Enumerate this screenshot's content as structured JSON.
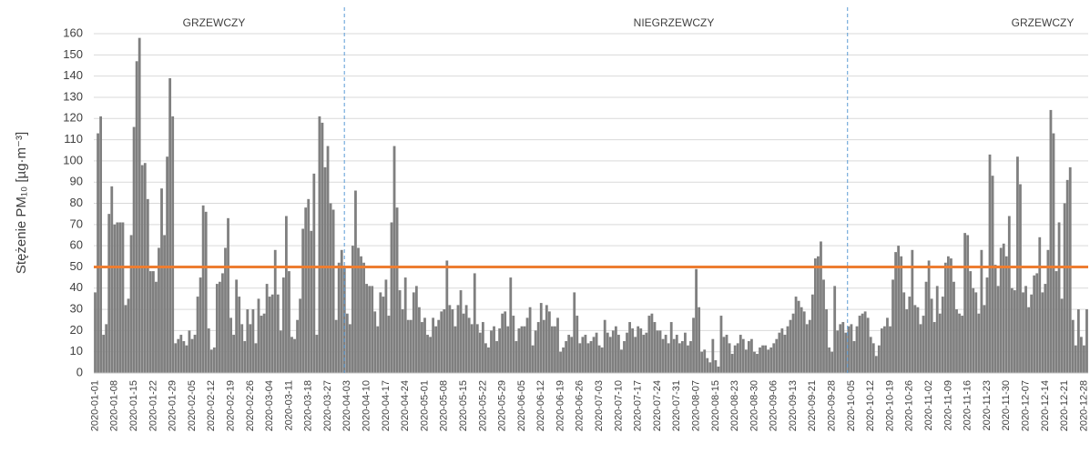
{
  "chart_data": {
    "type": "bar",
    "y_label": "Stężenie PM₁₀ [µg·m⁻³]",
    "annotations": [
      "GRZEWCZY",
      "NIEGRZEWCZY",
      "GRZEWCZY"
    ],
    "color": "#7f7f7f",
    "reference_line": {
      "value": 50,
      "color": "#ed7d31"
    },
    "ylim": [
      0,
      160
    ],
    "yticks": [
      0,
      10,
      20,
      30,
      40,
      50,
      60,
      70,
      80,
      90,
      100,
      110,
      120,
      130,
      140,
      150,
      160
    ],
    "grid": true,
    "categories": [
      "2020-01-01",
      null,
      null,
      null,
      null,
      null,
      null,
      "2020-01-08",
      null,
      null,
      null,
      null,
      null,
      null,
      "2020-01-15",
      null,
      null,
      null,
      null,
      null,
      null,
      "2020-01-22",
      null,
      null,
      null,
      null,
      null,
      null,
      "2020-01-29",
      null,
      null,
      null,
      null,
      null,
      null,
      "2020-02-05",
      null,
      null,
      null,
      null,
      null,
      null,
      "2020-02-12",
      null,
      null,
      null,
      null,
      null,
      null,
      "2020-02-19",
      null,
      null,
      null,
      null,
      null,
      null,
      "2020-02-26",
      null,
      null,
      null,
      null,
      null,
      null,
      "2020-03-04",
      null,
      null,
      null,
      null,
      null,
      null,
      "2020-03-11",
      null,
      null,
      null,
      null,
      null,
      null,
      "2020-03-18",
      null,
      null,
      null,
      null,
      null,
      null,
      "2020-03-27",
      null,
      null,
      null,
      null,
      null,
      null,
      "2020-04-03",
      null,
      null,
      null,
      null,
      null,
      null,
      "2020-04-10",
      null,
      null,
      null,
      null,
      null,
      null,
      "2020-04-17",
      null,
      null,
      null,
      null,
      null,
      null,
      "2020-04-24",
      null,
      null,
      null,
      null,
      null,
      null,
      "2020-05-01",
      null,
      null,
      null,
      null,
      null,
      null,
      "2020-05-08",
      null,
      null,
      null,
      null,
      null,
      null,
      "2020-05-15",
      null,
      null,
      null,
      null,
      null,
      null,
      "2020-05-22",
      null,
      null,
      null,
      null,
      null,
      null,
      "2020-05-29",
      null,
      null,
      null,
      null,
      null,
      null,
      "2020-06-05",
      null,
      null,
      null,
      null,
      null,
      null,
      "2020-06-12",
      null,
      null,
      null,
      null,
      null,
      null,
      "2020-06-19",
      null,
      null,
      null,
      null,
      null,
      null,
      "2020-06-26",
      null,
      null,
      null,
      null,
      null,
      null,
      "2020-07-03",
      null,
      null,
      null,
      null,
      null,
      null,
      "2020-07-10",
      null,
      null,
      null,
      null,
      null,
      null,
      "2020-07-17",
      null,
      null,
      null,
      null,
      null,
      null,
      "2020-07-24",
      null,
      null,
      null,
      null,
      null,
      null,
      "2020-07-31",
      null,
      null,
      null,
      null,
      null,
      null,
      "2020-08-07",
      null,
      null,
      null,
      null,
      null,
      null,
      "2020-08-15",
      null,
      null,
      null,
      null,
      null,
      null,
      "2020-08-23",
      null,
      null,
      null,
      null,
      null,
      null,
      "2020-08-30",
      null,
      null,
      null,
      null,
      null,
      null,
      "2020-09-06",
      null,
      null,
      null,
      null,
      null,
      null,
      "2020-09-13",
      null,
      null,
      null,
      null,
      null,
      null,
      "2020-09-21",
      null,
      null,
      null,
      null,
      null,
      null,
      "2020-09-28",
      null,
      null,
      null,
      null,
      null,
      null,
      "2020-10-05",
      null,
      null,
      null,
      null,
      null,
      null,
      "2020-10-12",
      null,
      null,
      null,
      null,
      null,
      null,
      "2020-10-19",
      null,
      null,
      null,
      null,
      null,
      null,
      "2020-10-26",
      null,
      null,
      null,
      null,
      null,
      null,
      "2020-11-02",
      null,
      null,
      null,
      null,
      null,
      null,
      "2020-11-09",
      null,
      null,
      null,
      null,
      null,
      null,
      "2020-11-16",
      null,
      null,
      null,
      null,
      null,
      null,
      "2020-11-23",
      null,
      null,
      null,
      null,
      null,
      null,
      "2020-11-30",
      null,
      null,
      null,
      null,
      null,
      null,
      "2020-12-07",
      null,
      null,
      null,
      null,
      null,
      null,
      "2020-12-14",
      null,
      null,
      null,
      null,
      null,
      null,
      "2020-12-21",
      null,
      null,
      null,
      null,
      null,
      null,
      "2020-12-28",
      null
    ],
    "values": [
      38,
      113,
      121,
      18,
      23,
      75,
      88,
      70,
      71,
      71,
      71,
      32,
      35,
      65,
      116,
      147,
      158,
      98,
      99,
      82,
      48,
      48,
      43,
      59,
      87,
      65,
      102,
      139,
      121,
      14,
      16,
      18,
      15,
      13,
      20,
      16,
      18,
      36,
      45,
      79,
      76,
      21,
      11,
      12,
      42,
      43,
      47,
      59,
      73,
      26,
      18,
      44,
      36,
      23,
      15,
      30,
      23,
      30,
      14,
      35,
      27,
      28,
      42,
      36,
      37,
      58,
      37,
      20,
      45,
      74,
      48,
      17,
      16,
      25,
      35,
      68,
      78,
      82,
      67,
      94,
      18,
      121,
      118,
      97,
      107,
      80,
      77,
      25,
      52,
      58,
      50,
      28,
      23,
      60,
      86,
      59,
      55,
      52,
      42,
      41,
      41,
      29,
      22,
      38,
      36,
      44,
      27,
      71,
      107,
      78,
      39,
      30,
      45,
      25,
      25,
      38,
      41,
      31,
      24,
      26,
      18,
      17,
      26,
      22,
      25,
      29,
      30,
      53,
      32,
      30,
      22,
      32,
      39,
      28,
      32,
      26,
      23,
      47,
      23,
      19,
      24,
      14,
      12,
      20,
      22,
      15,
      21,
      28,
      29,
      22,
      45,
      27,
      15,
      21,
      22,
      22,
      26,
      31,
      13,
      20,
      24,
      33,
      25,
      32,
      29,
      22,
      22,
      26,
      10,
      12,
      15,
      18,
      17,
      38,
      27,
      14,
      17,
      18,
      14,
      15,
      17,
      19,
      13,
      12,
      25,
      19,
      17,
      20,
      22,
      18,
      11,
      15,
      19,
      24,
      21,
      17,
      22,
      21,
      18,
      19,
      27,
      28,
      24,
      20,
      20,
      16,
      18,
      14,
      24,
      16,
      18,
      14,
      15,
      19,
      13,
      15,
      26,
      49,
      31,
      10,
      11,
      7,
      5,
      16,
      6,
      3,
      27,
      17,
      18,
      14,
      9,
      13,
      14,
      18,
      16,
      11,
      15,
      16,
      10,
      9,
      12,
      13,
      13,
      11,
      12,
      14,
      16,
      19,
      21,
      18,
      22,
      25,
      28,
      36,
      34,
      31,
      29,
      23,
      25,
      37,
      54,
      55,
      62,
      44,
      30,
      12,
      10,
      41,
      20,
      23,
      24,
      19,
      22,
      23,
      15,
      22,
      27,
      28,
      29,
      26,
      17,
      14,
      8,
      13,
      21,
      22,
      26,
      22,
      44,
      57,
      60,
      55,
      38,
      30,
      36,
      58,
      32,
      31,
      23,
      27,
      43,
      53,
      35,
      24,
      41,
      28,
      36,
      52,
      55,
      54,
      43,
      30,
      28,
      27,
      66,
      65,
      48,
      40,
      38,
      28,
      58,
      32,
      45,
      103,
      93,
      51,
      41,
      59,
      61,
      55,
      74,
      40,
      39,
      102,
      89,
      38,
      41,
      31,
      37,
      46,
      47,
      64,
      38,
      42,
      58,
      124,
      113,
      48,
      71,
      35,
      80,
      91,
      97,
      25,
      13,
      30,
      17,
      13,
      30
    ]
  }
}
